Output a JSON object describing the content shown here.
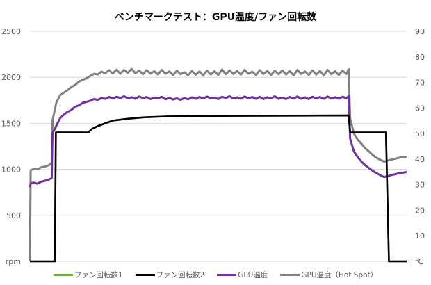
{
  "chart_data": {
    "type": "line",
    "title": "ベンチマークテスト：GPU温度/ファン回転数",
    "xlabel": "",
    "ylabel": "rpm",
    "y2label": "℃",
    "xlim": [
      0,
      100
    ],
    "ylim": [
      0,
      2500
    ],
    "y2lim": [
      0,
      90
    ],
    "yticks": [
      "rpm",
      "500",
      "1000",
      "1500",
      "2000",
      "2500"
    ],
    "y2ticks": [
      "℃",
      "10",
      "20",
      "30",
      "40",
      "50",
      "60",
      "70",
      "80",
      "90"
    ],
    "grid": true,
    "legend": "bottom",
    "series": [
      {
        "name": "ファン回転数1",
        "axis": "left",
        "color": "#70ad47",
        "points": [
          [
            0,
            0
          ],
          [
            6.6,
            0
          ],
          [
            6.9,
            1400
          ],
          [
            15.5,
            1400
          ],
          [
            16.5,
            1440
          ],
          [
            18,
            1470
          ],
          [
            20,
            1500
          ],
          [
            22,
            1530
          ],
          [
            26,
            1550
          ],
          [
            30,
            1565
          ],
          [
            36,
            1575
          ],
          [
            45,
            1580
          ],
          [
            84.6,
            1585
          ],
          [
            85,
            1400
          ],
          [
            94.5,
            1400
          ],
          [
            95.3,
            0
          ],
          [
            100,
            0
          ]
        ]
      },
      {
        "name": "ファン回転数2",
        "axis": "left",
        "color": "#000000",
        "points": [
          [
            0,
            0
          ],
          [
            6.6,
            0
          ],
          [
            6.9,
            1400
          ],
          [
            15.5,
            1400
          ],
          [
            16.5,
            1440
          ],
          [
            18,
            1470
          ],
          [
            20,
            1500
          ],
          [
            22,
            1530
          ],
          [
            26,
            1550
          ],
          [
            30,
            1565
          ],
          [
            36,
            1575
          ],
          [
            45,
            1580
          ],
          [
            60,
            1582
          ],
          [
            84.6,
            1585
          ],
          [
            85,
            1400
          ],
          [
            94.5,
            1400
          ],
          [
            95.3,
            0
          ],
          [
            100,
            0
          ]
        ]
      },
      {
        "name": "GPU温度",
        "axis": "right",
        "color": "#7030a0",
        "points": [
          [
            0,
            29
          ],
          [
            0.2,
            30.5
          ],
          [
            1,
            30.8
          ],
          [
            2,
            30.4
          ],
          [
            3,
            31.2
          ],
          [
            4,
            31.5
          ],
          [
            5,
            32
          ],
          [
            5.8,
            32.6
          ],
          [
            6,
            50
          ],
          [
            7,
            53
          ],
          [
            8,
            56
          ],
          [
            9,
            57.4
          ],
          [
            10,
            58.5
          ],
          [
            11,
            59.2
          ],
          [
            12,
            60.5
          ],
          [
            13,
            61
          ],
          [
            14,
            62
          ],
          [
            15,
            62.4
          ],
          [
            16,
            62.8
          ],
          [
            17,
            63.5
          ],
          [
            18,
            63.2
          ],
          [
            19,
            63.9
          ],
          [
            20,
            63.6
          ],
          [
            21,
            64.3
          ],
          [
            22,
            63.7
          ],
          [
            23,
            64.4
          ],
          [
            24,
            63.9
          ],
          [
            25,
            64.6
          ],
          [
            26,
            63.8
          ],
          [
            27,
            64.2
          ],
          [
            28,
            63.6
          ],
          [
            29,
            64.5
          ],
          [
            30,
            63.9
          ],
          [
            31,
            64.3
          ],
          [
            32,
            63.5
          ],
          [
            33,
            64.1
          ],
          [
            34,
            63.7
          ],
          [
            35,
            64.4
          ],
          [
            36,
            63.4
          ],
          [
            37,
            64
          ],
          [
            38,
            63.3
          ],
          [
            39,
            63.8
          ],
          [
            40,
            63.2
          ],
          [
            41,
            63.9
          ],
          [
            42,
            63.4
          ],
          [
            43,
            64.2
          ],
          [
            44,
            63.6
          ],
          [
            45,
            64.3
          ],
          [
            46,
            63.7
          ],
          [
            47,
            64.5
          ],
          [
            48,
            63.8
          ],
          [
            49,
            64.1
          ],
          [
            50,
            63.5
          ],
          [
            51,
            64.4
          ],
          [
            52,
            63.9
          ],
          [
            53,
            64.6
          ],
          [
            54,
            63.7
          ],
          [
            55,
            64.2
          ],
          [
            56,
            63.6
          ],
          [
            57,
            64.5
          ],
          [
            58,
            63.8
          ],
          [
            59,
            64.3
          ],
          [
            60,
            63.6
          ],
          [
            61,
            64.4
          ],
          [
            62,
            63.5
          ],
          [
            63,
            64.2
          ],
          [
            64,
            63.8
          ],
          [
            65,
            64.6
          ],
          [
            66,
            63.6
          ],
          [
            67,
            64.1
          ],
          [
            68,
            63.5
          ],
          [
            69,
            64.3
          ],
          [
            70,
            63.7
          ],
          [
            71,
            64.5
          ],
          [
            72,
            63.6
          ],
          [
            73,
            64.2
          ],
          [
            74,
            63.5
          ],
          [
            75,
            64.4
          ],
          [
            76,
            63.8
          ],
          [
            77,
            64.3
          ],
          [
            78,
            63.6
          ],
          [
            79,
            64.5
          ],
          [
            80,
            63.7
          ],
          [
            81,
            64.2
          ],
          [
            82,
            63.6
          ],
          [
            83,
            64.4
          ],
          [
            84,
            63.8
          ],
          [
            84.6,
            64.6
          ],
          [
            85,
            48
          ],
          [
            86,
            43
          ],
          [
            87,
            40.8
          ],
          [
            88,
            39
          ],
          [
            89,
            37.6
          ],
          [
            90,
            36.5
          ],
          [
            91,
            35.4
          ],
          [
            92,
            34.5
          ],
          [
            93,
            33.7
          ],
          [
            94,
            33
          ],
          [
            95,
            33.3
          ],
          [
            96,
            33.8
          ],
          [
            97,
            34.1
          ],
          [
            98,
            34.5
          ],
          [
            99,
            34.7
          ],
          [
            100,
            35
          ]
        ]
      },
      {
        "name": "GPU温度（Hot Spot）",
        "axis": "right",
        "color": "#808080",
        "points": [
          [
            0,
            0
          ],
          [
            0.2,
            35.6
          ],
          [
            1,
            36.2
          ],
          [
            2,
            36
          ],
          [
            3,
            36.8
          ],
          [
            4,
            37.1
          ],
          [
            5,
            37.6
          ],
          [
            5.8,
            38.5
          ],
          [
            6,
            55
          ],
          [
            7,
            62
          ],
          [
            8,
            65
          ],
          [
            9,
            66
          ],
          [
            10,
            67
          ],
          [
            11,
            68.2
          ],
          [
            12,
            69
          ],
          [
            13,
            70.3
          ],
          [
            14,
            71
          ],
          [
            15,
            71.6
          ],
          [
            16,
            72.5
          ],
          [
            17,
            73.4
          ],
          [
            18,
            73.1
          ],
          [
            19,
            74.2
          ],
          [
            20,
            73.6
          ],
          [
            21,
            74.8
          ],
          [
            22,
            73.5
          ],
          [
            23,
            75
          ],
          [
            24,
            73.4
          ],
          [
            25,
            74.9
          ],
          [
            26,
            73.7
          ],
          [
            27,
            75.3
          ],
          [
            28,
            73.6
          ],
          [
            29,
            74.6
          ],
          [
            30,
            73.2
          ],
          [
            31,
            74.8
          ],
          [
            32,
            73.5
          ],
          [
            33,
            74.4
          ],
          [
            34,
            73.1
          ],
          [
            35,
            74.9
          ],
          [
            36,
            73.4
          ],
          [
            37,
            74.3
          ],
          [
            38,
            72.9
          ],
          [
            39,
            74.6
          ],
          [
            40,
            73.2
          ],
          [
            41,
            74
          ],
          [
            42,
            72.8
          ],
          [
            43,
            74.5
          ],
          [
            44,
            73
          ],
          [
            45,
            74.3
          ],
          [
            46,
            72.7
          ],
          [
            47,
            74.6
          ],
          [
            48,
            73.1
          ],
          [
            49,
            74.4
          ],
          [
            50,
            72.9
          ],
          [
            51,
            75.1
          ],
          [
            52,
            73.2
          ],
          [
            53,
            74.7
          ],
          [
            54,
            73.3
          ],
          [
            55,
            74.5
          ],
          [
            56,
            73
          ],
          [
            57,
            74.9
          ],
          [
            58,
            73.4
          ],
          [
            59,
            74.2
          ],
          [
            60,
            72.9
          ],
          [
            61,
            74.8
          ],
          [
            62,
            73.3
          ],
          [
            63,
            74.5
          ],
          [
            64,
            72.9
          ],
          [
            65,
            74.6
          ],
          [
            66,
            73.2
          ],
          [
            67,
            74.7
          ],
          [
            68,
            73.1
          ],
          [
            69,
            74.4
          ],
          [
            70,
            72.8
          ],
          [
            71,
            74.9
          ],
          [
            72,
            73.3
          ],
          [
            73,
            74.3
          ],
          [
            74,
            72.9
          ],
          [
            75,
            74.7
          ],
          [
            76,
            73.1
          ],
          [
            77,
            74.5
          ],
          [
            78,
            72.8
          ],
          [
            79,
            74.9
          ],
          [
            80,
            73.2
          ],
          [
            81,
            74.4
          ],
          [
            82,
            72.9
          ],
          [
            83,
            74.6
          ],
          [
            84,
            73.3
          ],
          [
            84.6,
            75.2
          ],
          [
            85,
            56
          ],
          [
            86,
            50
          ],
          [
            87,
            47.6
          ],
          [
            88,
            46
          ],
          [
            89,
            44.2
          ],
          [
            90,
            43
          ],
          [
            91,
            41.6
          ],
          [
            92,
            40.5
          ],
          [
            93,
            39.7
          ],
          [
            94,
            39
          ],
          [
            95,
            39.4
          ],
          [
            96,
            39.8
          ],
          [
            97,
            40.2
          ],
          [
            98,
            40.5
          ],
          [
            99,
            40.8
          ],
          [
            100,
            41
          ]
        ]
      }
    ]
  }
}
